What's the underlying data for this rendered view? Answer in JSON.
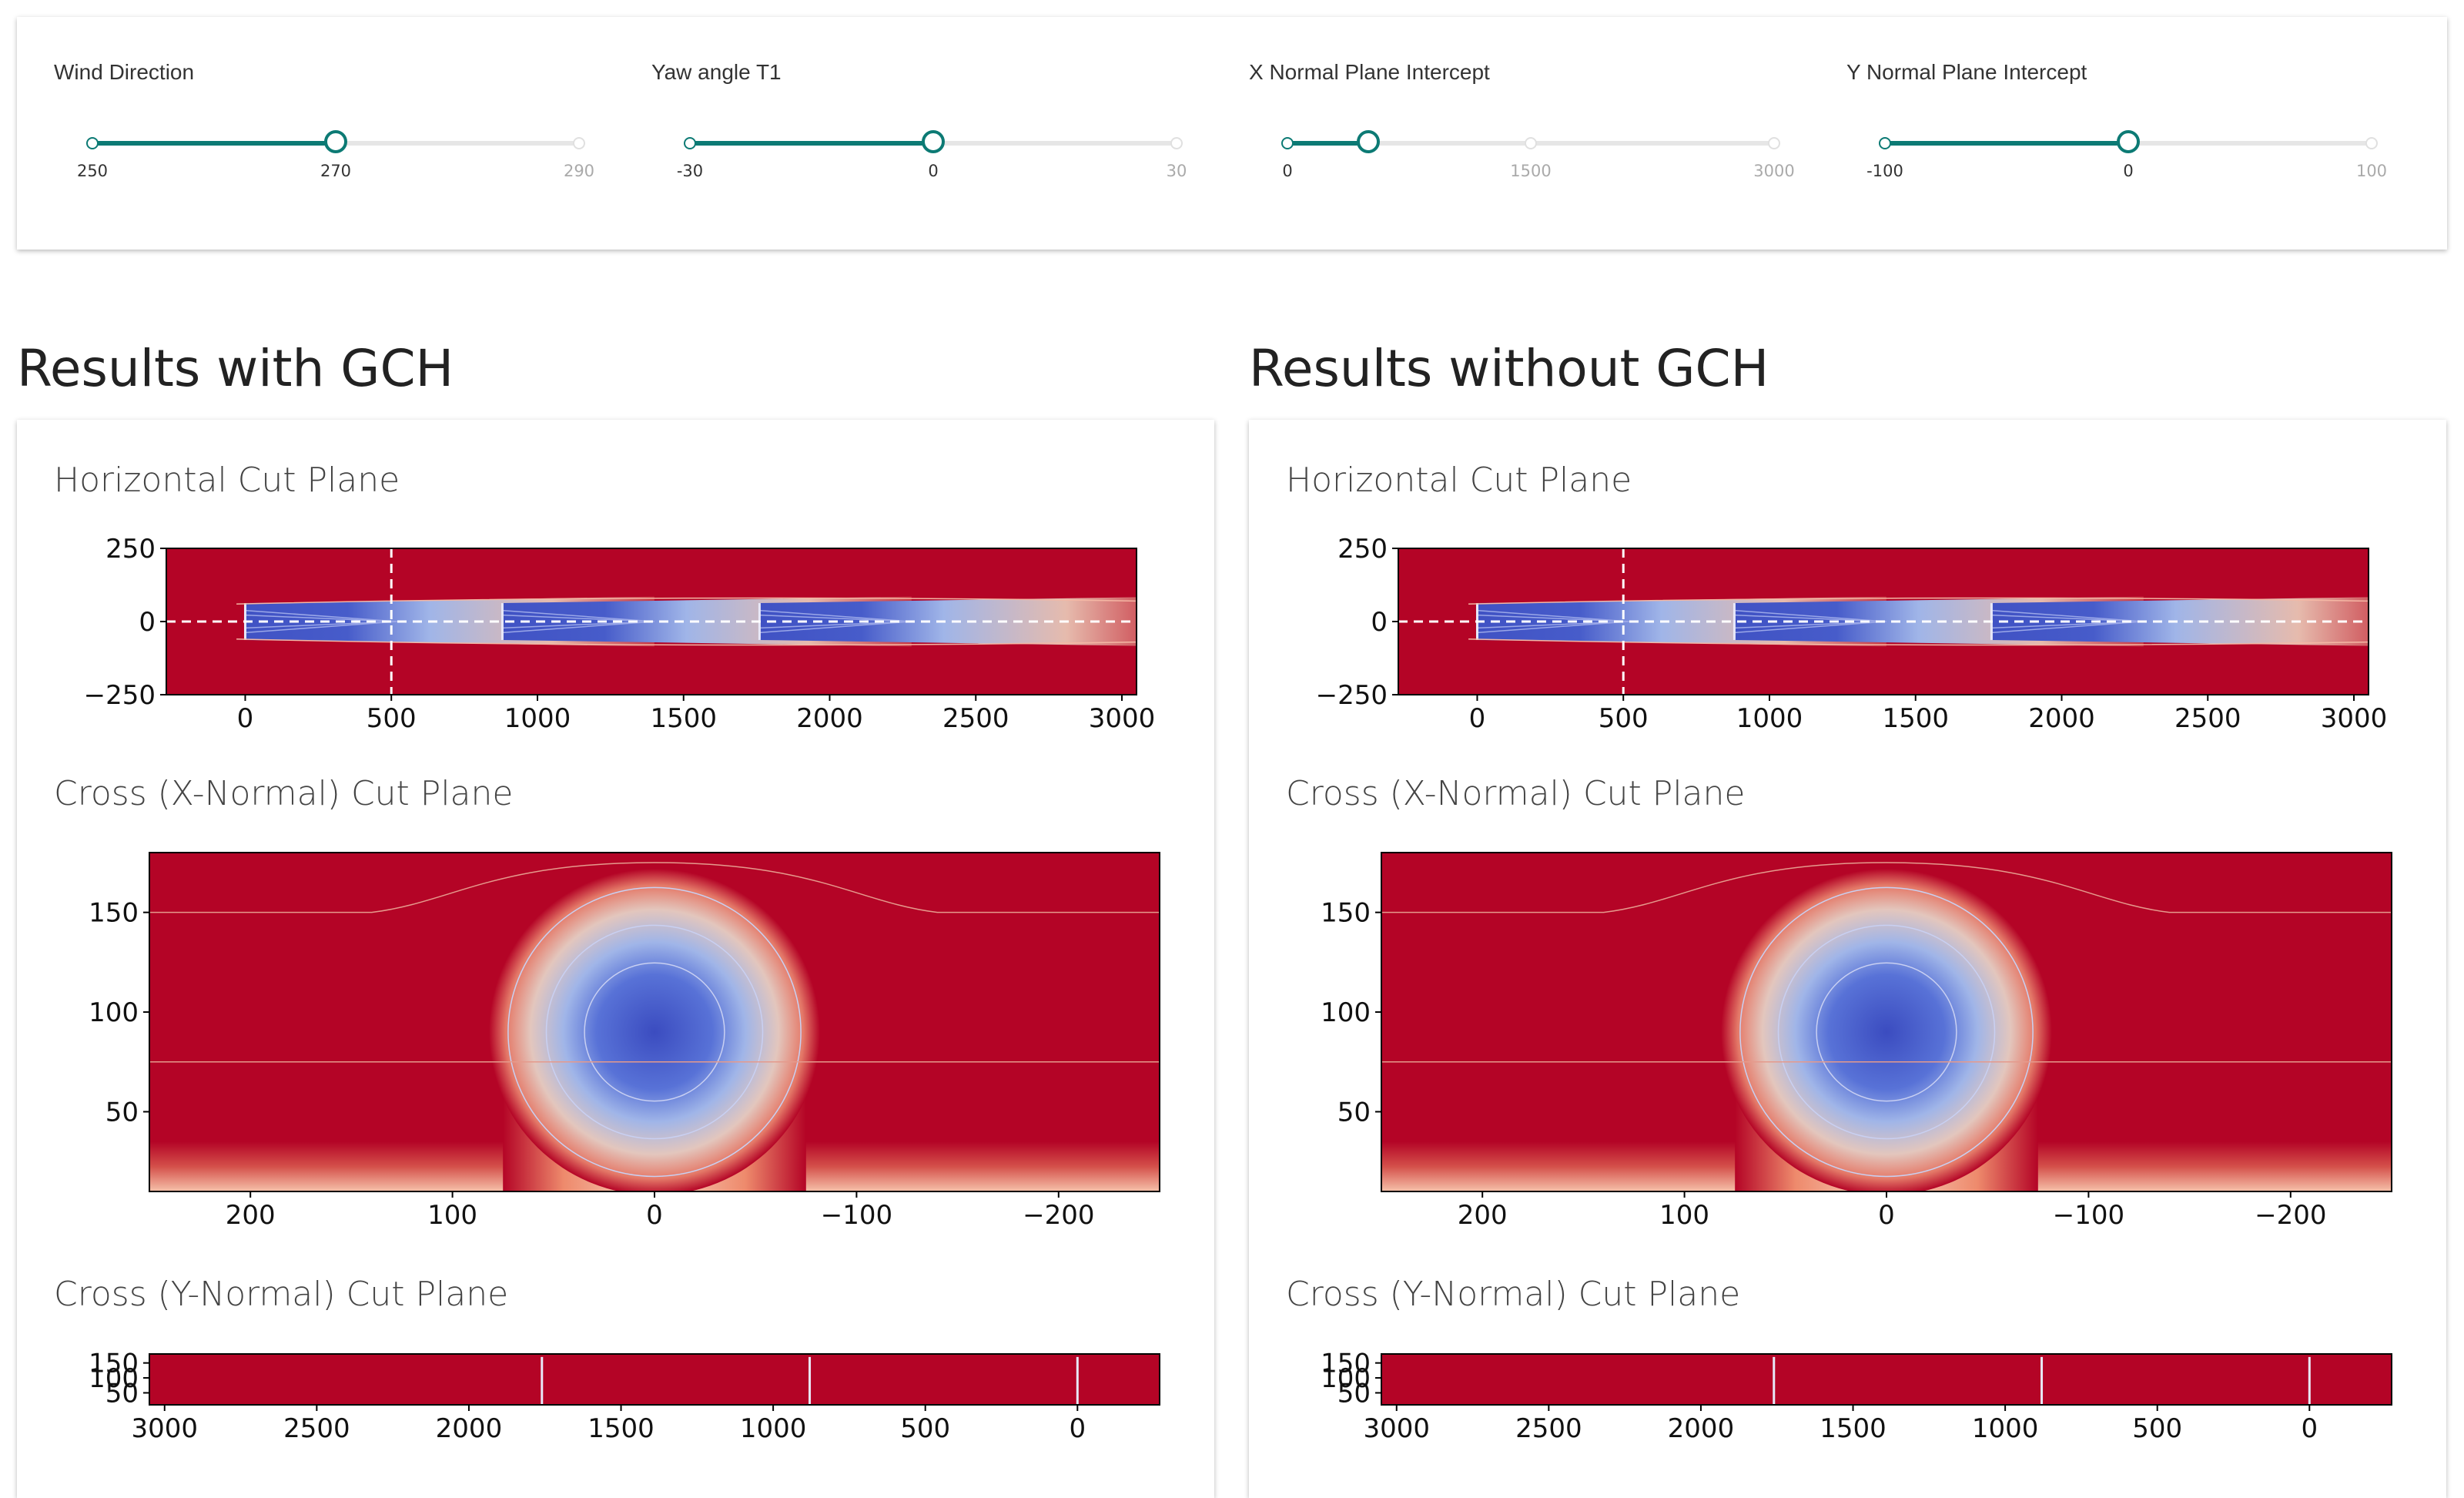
{
  "sliders": [
    {
      "label": "Wind Direction",
      "min": 250,
      "mid": 270,
      "max": 290,
      "marks": [
        "250",
        "270",
        "290"
      ],
      "value": 270
    },
    {
      "label": "Yaw angle T1",
      "min": -30,
      "mid": 0,
      "max": 30,
      "marks": [
        "-30",
        "0",
        "30"
      ],
      "value": 0
    },
    {
      "label": "X Normal Plane Intercept",
      "min": 0,
      "mid": 1500,
      "max": 3000,
      "marks": [
        "0",
        "1500",
        "3000"
      ],
      "value": 500
    },
    {
      "label": "Y Normal Plane Intercept",
      "min": -100,
      "mid": 0,
      "max": 100,
      "marks": [
        "-100",
        "0",
        "100"
      ],
      "value": 0
    }
  ],
  "results": [
    {
      "title": "Results with GCH",
      "horizontal": {
        "title": "Horizontal Cut Plane"
      },
      "cross_x": {
        "title": "Cross (X-Normal) Cut Plane"
      },
      "cross_y": {
        "title": "Cross (Y-Normal) Cut Plane"
      }
    },
    {
      "title": "Results without GCH",
      "horizontal": {
        "title": "Horizontal Cut Plane"
      },
      "cross_x": {
        "title": "Cross (X-Normal) Cut Plane"
      },
      "cross_y": {
        "title": "Cross (Y-Normal) Cut Plane"
      }
    }
  ],
  "chart_data": [
    {
      "type": "heatmap",
      "name": "horizontal",
      "xlim": [
        -270,
        3050
      ],
      "ylim": [
        -250,
        250
      ],
      "xticks": [
        0,
        500,
        1000,
        1500,
        2000,
        2500,
        3000
      ],
      "xtick_labels": [
        "0",
        "500",
        "1000",
        "1500",
        "2000",
        "2500",
        "3000"
      ],
      "yticks": [
        250,
        0,
        -250
      ],
      "ytick_labels": [
        "250",
        "0",
        "−250"
      ],
      "turbine_x": [
        0,
        880,
        1760
      ],
      "wake_halfwidth": 63,
      "x_intercept": 500,
      "y_intercept": 0,
      "colors": {
        "free_stream": "#b40426",
        "wake_core": "#3b4cc0"
      }
    },
    {
      "type": "heatmap",
      "name": "cross_x",
      "xlim": [
        250,
        -250
      ],
      "ylim": [
        10,
        180
      ],
      "xticks": [
        200,
        100,
        0,
        -100,
        -200
      ],
      "xtick_labels": [
        "200",
        "100",
        "0",
        "−100",
        "−200"
      ],
      "yticks": [
        150,
        100,
        50
      ],
      "ytick_labels": [
        "150",
        "100",
        "50"
      ],
      "wake_center": [
        0,
        90
      ],
      "wake_radius": 63
    },
    {
      "type": "heatmap",
      "name": "cross_y",
      "xlim": [
        3050,
        -270
      ],
      "ylim": [
        10,
        180
      ],
      "xticks": [
        3000,
        2500,
        2000,
        1500,
        1000,
        500,
        0
      ],
      "xtick_labels": [
        "3000",
        "2500",
        "2000",
        "1500",
        "1000",
        "500",
        "0"
      ],
      "yticks": [
        150,
        100,
        50
      ],
      "ytick_labels": [
        "150",
        "100",
        "50"
      ],
      "turbine_x": [
        0,
        880,
        1760
      ]
    }
  ]
}
